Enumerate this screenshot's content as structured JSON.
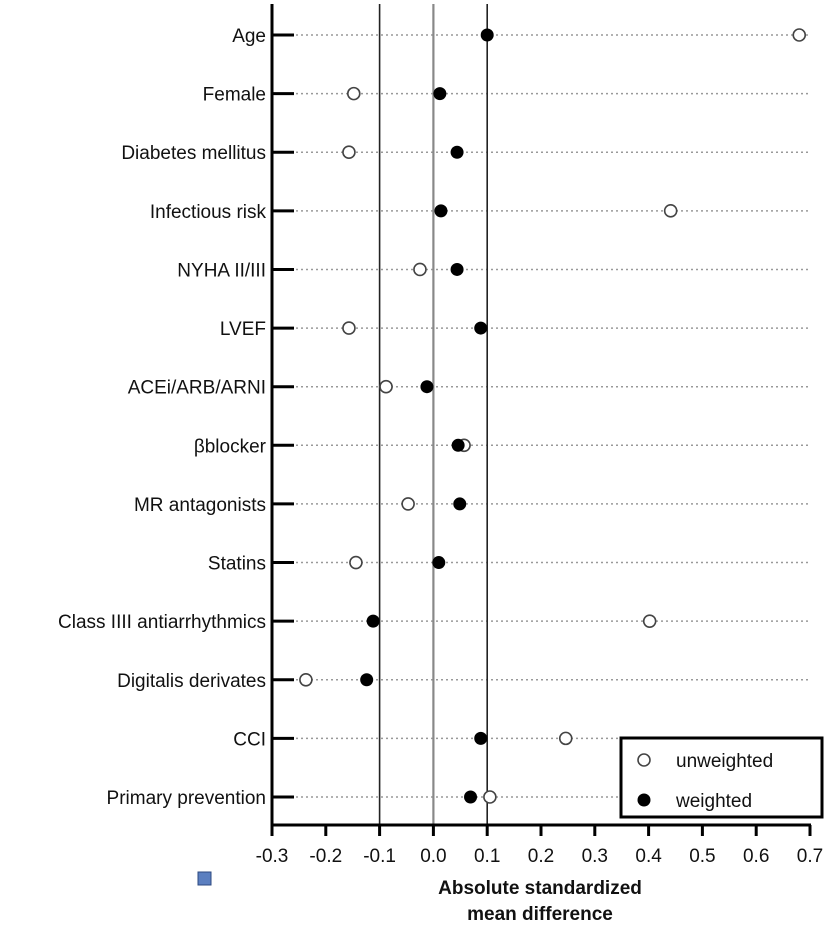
{
  "chart_data": {
    "type": "scatter",
    "xlabel": "Absolute standardized mean difference",
    "xlim": [
      -0.3,
      0.7
    ],
    "xticks": [
      "-0.3",
      "-0.2",
      "-0.1",
      "0.0",
      "0.1",
      "0.2",
      "0.3",
      "0.4",
      "0.5",
      "0.6",
      "0.7"
    ],
    "reference_lines": [
      -0.1,
      0.0,
      0.1
    ],
    "categories": [
      "Age",
      "Female",
      "Diabetes mellitus",
      "Infectious risk",
      "NYHA II/III",
      "LVEF",
      "ACEi/ARB/ARNI",
      "βblocker",
      "MR antagonists",
      "Statins",
      "Class IIII antiarrhythmics",
      "Digitalis derivates",
      "CCI",
      "Primary prevention"
    ],
    "series": [
      {
        "name": "unweighted",
        "marker": "open-circle",
        "values": [
          0.68,
          -0.148,
          -0.157,
          0.441,
          -0.025,
          -0.157,
          -0.088,
          0.057,
          -0.047,
          -0.144,
          0.402,
          -0.237,
          0.246,
          0.105
        ]
      },
      {
        "name": "weighted",
        "marker": "filled-circle",
        "values": [
          0.1,
          0.012,
          0.044,
          0.014,
          0.044,
          0.088,
          -0.012,
          0.046,
          0.049,
          0.01,
          -0.112,
          -0.124,
          0.088,
          0.069
        ]
      }
    ],
    "legend": "bottom-right",
    "grid": "dotted horizontal per category"
  },
  "colors": {
    "marker": "#000000",
    "grid": "#999999",
    "icon": "#5b7fc0"
  }
}
